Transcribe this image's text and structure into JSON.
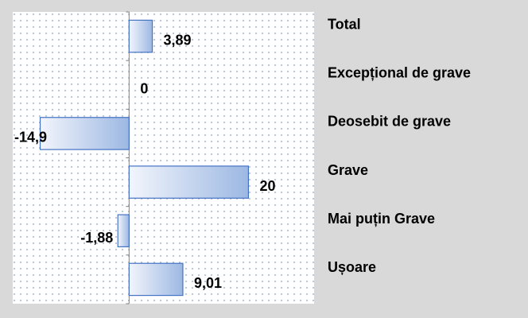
{
  "chart_data": {
    "type": "bar",
    "orientation": "horizontal",
    "categories": [
      "Total",
      "Excepțional de grave",
      "Deosebit de grave",
      "Grave",
      "Mai puțin Grave",
      "Ușoare"
    ],
    "values": [
      3.89,
      0,
      -14.9,
      20,
      -1.88,
      9.01
    ],
    "value_labels": [
      "3,89",
      "0",
      "-14,9",
      "20",
      "-1,88",
      "9,01"
    ],
    "color": "#4472c4",
    "xlim": [
      -19.5,
      31
    ]
  }
}
